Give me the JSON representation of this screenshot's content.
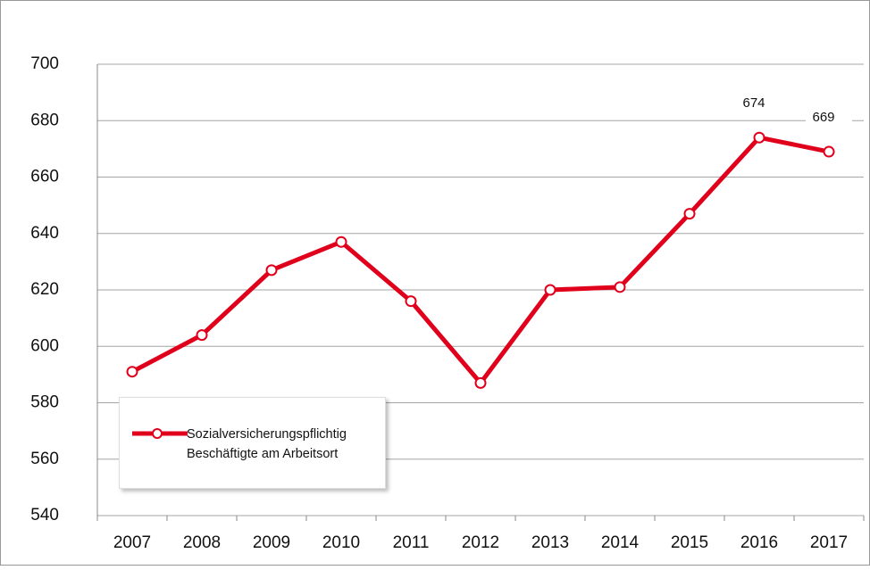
{
  "chart_data": {
    "type": "line",
    "categories": [
      "2007",
      "2008",
      "2009",
      "2010",
      "2011",
      "2012",
      "2013",
      "2014",
      "2015",
      "2016",
      "2017"
    ],
    "series": [
      {
        "name": "Sozialversicherungspflichtig Beschäftigte am Arbeitsort",
        "color": "#e0001b",
        "values": [
          591,
          604,
          627,
          637,
          616,
          587,
          620,
          621,
          647,
          674,
          669
        ],
        "value_labels": [
          null,
          null,
          null,
          null,
          null,
          null,
          null,
          null,
          null,
          "674",
          "669"
        ]
      }
    ],
    "ylim": [
      540,
      700
    ],
    "yticks": [
      540,
      560,
      580,
      600,
      620,
      640,
      660,
      680,
      700
    ],
    "grid": true
  }
}
